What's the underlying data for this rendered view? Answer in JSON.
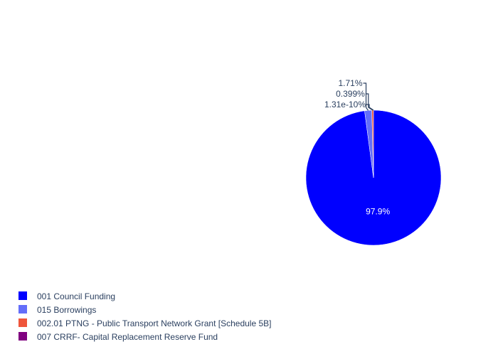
{
  "chart_data": {
    "type": "pie",
    "title": "",
    "legend_position": "bottom-left",
    "start_angle_deg": 90,
    "direction": "clockwise",
    "slices": [
      {
        "label": "001 Council Funding",
        "value": 97.9,
        "text": "97.9%",
        "color": "#0000ff",
        "text_position": "inside",
        "text_color": "#ffffff"
      },
      {
        "label": "015 Borrowings",
        "value": 1.71,
        "text": "1.71%",
        "color": "#636efa",
        "text_position": "outside",
        "text_color": "#2a3f5f"
      },
      {
        "label": "002.01 PTNG - Public Transport Network Grant [Schedule 5B]",
        "value": 0.399,
        "text": "0.399%",
        "color": "#ef553b",
        "text_position": "outside",
        "text_color": "#2a3f5f"
      },
      {
        "label": "007 CRRF- Capital Replacement Reserve Fund",
        "value": 1.31e-10,
        "text": "1.31e-10%",
        "color": "#800080",
        "text_position": "outside",
        "text_color": "#2a3f5f"
      }
    ]
  }
}
